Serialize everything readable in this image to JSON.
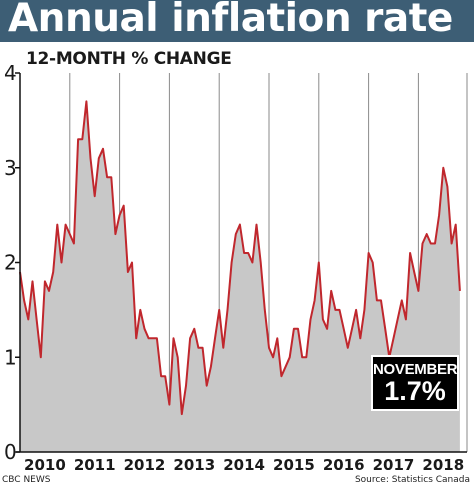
{
  "header": {
    "title": "Annual inflation rate",
    "subtitle": "12-MONTH % CHANGE"
  },
  "callout": {
    "line1": "NOVEMBER",
    "line2": "1.7%"
  },
  "footer": {
    "credit": "CBC NEWS",
    "source": "Source: Statistics Canada"
  },
  "colors": {
    "header_bg": "#3d5e75",
    "line": "#c0272d",
    "area_fill": "#c8c8c8",
    "callout_bg": "#000000"
  },
  "chart_data": {
    "type": "area",
    "title": "Annual inflation rate",
    "subtitle": "12-MONTH % CHANGE",
    "xlabel": "",
    "ylabel": "",
    "ylim": [
      0,
      4
    ],
    "yticks": [
      "0",
      "1",
      "2",
      "3",
      "4"
    ],
    "year_labels": [
      "2010",
      "2011",
      "2012",
      "2013",
      "2014",
      "2015",
      "2016",
      "2017",
      "2018"
    ],
    "grid": "vertical lines at year boundaries",
    "x_start": "2010-01",
    "x_end": "2018-11",
    "series": [
      {
        "values": [
          1.9,
          1.6,
          1.4,
          1.8,
          1.4,
          1.0,
          1.8,
          1.7,
          1.9,
          2.4,
          2.0,
          2.4,
          2.3,
          2.2,
          3.3,
          3.3,
          3.7,
          3.1,
          2.7,
          3.1,
          3.2,
          2.9,
          2.9,
          2.3,
          2.5,
          2.6,
          1.9,
          2.0,
          1.2,
          1.5,
          1.3,
          1.2,
          1.2,
          1.2,
          0.8,
          0.8,
          0.5,
          1.2,
          1.0,
          0.4,
          0.7,
          1.2,
          1.3,
          1.1,
          1.1,
          0.7,
          0.9,
          1.2,
          1.5,
          1.1,
          1.5,
          2.0,
          2.3,
          2.4,
          2.1,
          2.1,
          2.0,
          2.4,
          2.0,
          1.5,
          1.1,
          1.0,
          1.2,
          0.8,
          0.9,
          1.0,
          1.3,
          1.3,
          1.0,
          1.0,
          1.4,
          1.6,
          2.0,
          1.4,
          1.3,
          1.7,
          1.5,
          1.5,
          1.3,
          1.1,
          1.3,
          1.5,
          1.2,
          1.5,
          2.1,
          2.0,
          1.6,
          1.6,
          1.3,
          1.0,
          1.2,
          1.4,
          1.6,
          1.4,
          2.1,
          1.9,
          1.7,
          2.2,
          2.3,
          2.2,
          2.2,
          2.5,
          3.0,
          2.8,
          2.2,
          2.4,
          1.7
        ]
      }
    ],
    "annotation": "NOVEMBER 1.7%"
  }
}
